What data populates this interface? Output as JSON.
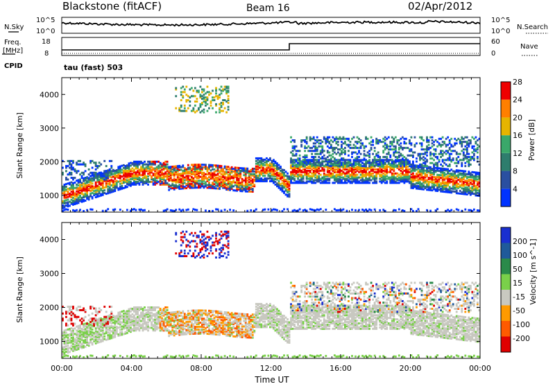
{
  "header": {
    "station": "Blackstone (fitACF)",
    "beam": "Beam 16",
    "date": "02/Apr/2012"
  },
  "noise_panel": {
    "left_label": "N.Sky",
    "right_label": "N.Search",
    "left_ticks": [
      "10^5",
      "10^0"
    ],
    "right_ticks": [
      "10^5",
      "10^0"
    ]
  },
  "freq_panel": {
    "left_label_1": "Freq.",
    "left_label_2": "[MHz]",
    "right_label": "Nave",
    "left_ticks": [
      "18",
      "8"
    ],
    "right_ticks": [
      "60",
      "0"
    ],
    "cpid_label": "CPID",
    "cpid_text": "tau (fast) 503"
  },
  "chart_data": [
    {
      "type": "heatmap",
      "name": "power",
      "ylabel": "Slant Range [km]",
      "yticks": [
        "1000",
        "2000",
        "3000",
        "4000"
      ],
      "ylim": [
        500,
        4500
      ],
      "xticks": [
        "00:00",
        "04:00",
        "08:00",
        "12:00",
        "16:00",
        "20:00",
        "00:00"
      ],
      "colorbar_label": "Power [dB]",
      "colorbar_ticks": [
        "4",
        "8",
        "12",
        "16",
        "20",
        "24",
        "28"
      ],
      "colors": [
        "#0033ff",
        "#2a4fa0",
        "#2e7d6d",
        "#3aa86a",
        "#e6b400",
        "#ff7f00",
        "#ee0000"
      ]
    },
    {
      "type": "heatmap",
      "name": "velocity",
      "ylabel": "Slant Range [km]",
      "yticks": [
        "1000",
        "2000",
        "3000",
        "4000"
      ],
      "ylim": [
        500,
        4500
      ],
      "xticks": [
        "00:00",
        "04:00",
        "08:00",
        "12:00",
        "16:00",
        "20:00",
        "00:00"
      ],
      "xlabel": "Time UT",
      "colorbar_label": "Velocity [m s^-1]",
      "colorbar_ticks": [
        "200",
        "100",
        "50",
        "15",
        "-15",
        "-50",
        "-100",
        "-200"
      ],
      "colors": [
        "#1a2fd0",
        "#1f5a9a",
        "#2a8a4a",
        "#7ad04a",
        "#c8c8c0",
        "#ff9a00",
        "#ff5a00",
        "#e00000"
      ]
    }
  ]
}
